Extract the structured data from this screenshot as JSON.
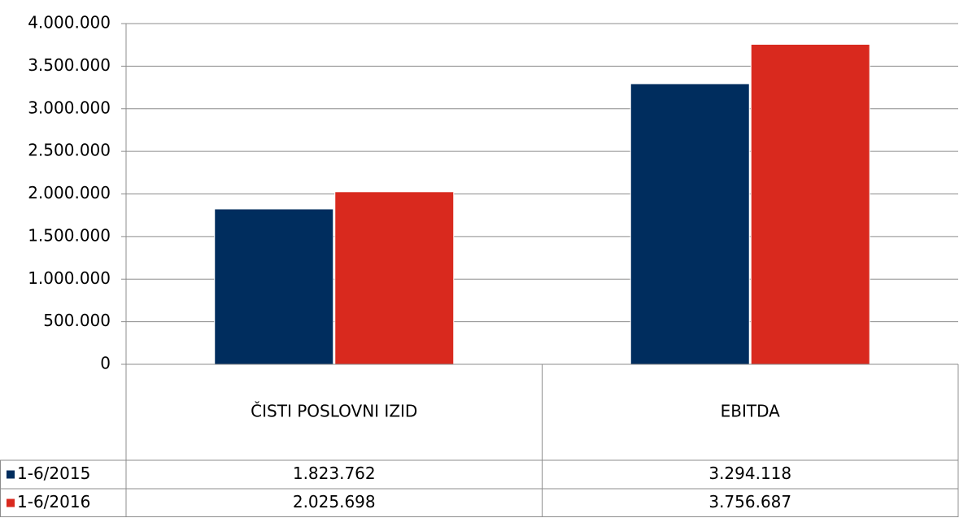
{
  "chart_data": {
    "type": "bar",
    "categories": [
      "ČISTI POSLOVNI IZID",
      "EBITDA"
    ],
    "series": [
      {
        "name": "1-6/2015",
        "color": "#002d5e",
        "values": [
          1823762,
          3294118
        ],
        "value_labels": [
          "1.823.762",
          "3.294.118"
        ]
      },
      {
        "name": "1-6/2016",
        "color": "#d9291e",
        "values": [
          2025698,
          3756687
        ],
        "value_labels": [
          "2.025.698",
          "3.756.687"
        ]
      }
    ],
    "ylim": [
      0,
      4000000
    ],
    "yticks": [
      0,
      {
        "value": 500000,
        "label": "500.000"
      },
      {
        "value": 1000000,
        "label": "1.000.000"
      },
      {
        "value": 1500000,
        "label": "1.500.000"
      },
      {
        "value": 2000000,
        "label": "2.000.000"
      },
      {
        "value": 2500000,
        "label": "2.500.000"
      },
      {
        "value": 3000000,
        "label": "3.000.000"
      },
      {
        "value": 3500000,
        "label": "3.500.000"
      },
      {
        "value": 4000000,
        "label": "4.000.000"
      }
    ],
    "grid": true,
    "data_table": true
  }
}
